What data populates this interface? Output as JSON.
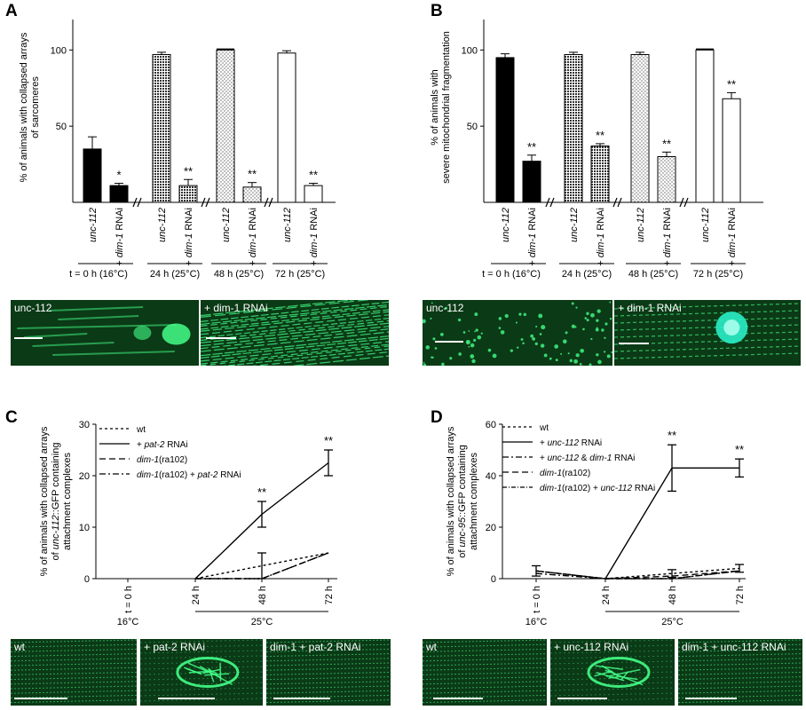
{
  "panels": {
    "A": {
      "label": "A"
    },
    "B": {
      "label": "B"
    },
    "C": {
      "label": "C"
    },
    "D": {
      "label": "D"
    }
  },
  "colors": {
    "micro_bg": "#0b3a16",
    "micro_fg": "#44ff88"
  },
  "chart_data": [
    {
      "panel": "A",
      "type": "bar",
      "ylabel": "% of animals with collapsed arrays of sarcomeres",
      "ylim": [
        0,
        120
      ],
      "yticks": [
        50,
        100
      ],
      "categories": [
        "unc-112",
        "+ dim-1 RNAi",
        "unc-112",
        "+ dim-1 RNAi",
        "unc-112",
        "+ dim-1 RNAi",
        "unc-112",
        "+ dim-1 RNAi"
      ],
      "values": [
        35,
        11,
        97,
        11,
        100,
        10,
        98,
        11
      ],
      "errors": [
        8,
        1.5,
        1.5,
        4,
        0,
        3,
        1.5,
        1.5
      ],
      "patterns": [
        "solid",
        "solid",
        "crosshatch",
        "crosshatch",
        "dots",
        "dots",
        "open",
        "open"
      ],
      "significance": [
        "",
        "*",
        "",
        "**",
        "",
        "**",
        "",
        "**"
      ],
      "groups": [
        "t = 0 h (16°C)",
        "24 h (25°C)",
        "48 h (25°C)",
        "72 h (25°C)"
      ]
    },
    {
      "panel": "B",
      "type": "bar",
      "ylabel": "% of animals with severe mitochondrial fragmentation",
      "ylim": [
        0,
        120
      ],
      "yticks": [
        50,
        100
      ],
      "categories": [
        "unc-112",
        "+ dim-1 RNAi",
        "unc-112",
        "+ dim-1 RNAi",
        "unc-112",
        "+ dim-1 RNAi",
        "unc-112",
        "+ dim-1 RNAi"
      ],
      "values": [
        95,
        27,
        97,
        37,
        97,
        30,
        100,
        68
      ],
      "errors": [
        2.5,
        4,
        1.5,
        1.5,
        1.5,
        3,
        0,
        4
      ],
      "patterns": [
        "solid",
        "solid",
        "crosshatch",
        "crosshatch",
        "dots",
        "dots",
        "open",
        "open"
      ],
      "significance": [
        "",
        "**",
        "",
        "**",
        "",
        "**",
        "",
        "**"
      ],
      "groups": [
        "t = 0 h (16°C)",
        "24 h (25°C)",
        "48 h (25°C)",
        "72 h (25°C)"
      ]
    },
    {
      "panel": "C",
      "type": "line",
      "ylabel": "% of animals with collapsed arrays of unc-112::GFP containing attachment complexes",
      "ylim": [
        0,
        30
      ],
      "yticks": [
        0,
        10,
        20,
        30
      ],
      "x": [
        "t = 0 h",
        "24 h",
        "48 h",
        "72 h"
      ],
      "temperatures": [
        "16°C",
        "25°C"
      ],
      "series": [
        {
          "name": "wt",
          "dash": "3,3",
          "values": [
            null,
            0,
            2.5,
            5
          ],
          "errors": [
            null,
            null,
            null,
            null
          ]
        },
        {
          "name": "+ pat-2 RNAi",
          "dash": "",
          "values": [
            null,
            0,
            12.5,
            22.5
          ],
          "errors": [
            null,
            null,
            2.5,
            2.5
          ]
        },
        {
          "name": "dim-1(ra102)",
          "dash": "7,4",
          "values": [
            null,
            0,
            0,
            5
          ],
          "errors": [
            null,
            null,
            5,
            null
          ]
        },
        {
          "name": "dim-1(ra102) + pat-2 RNAi",
          "dash": "7,3,2,3",
          "values": [
            null,
            0,
            0,
            5
          ],
          "errors": [
            null,
            null,
            null,
            null
          ]
        }
      ],
      "significance": [
        "",
        "",
        "**",
        "**"
      ]
    },
    {
      "panel": "D",
      "type": "line",
      "ylabel": "% of animals with collapsed arrays of unc-95::GFP containing attachment complexes",
      "ylim": [
        0,
        60
      ],
      "yticks": [
        0,
        20,
        40,
        60
      ],
      "x": [
        "t = 0 h",
        "24 h",
        "48 h",
        "72 h"
      ],
      "temperatures": [
        "16°C",
        "25°C"
      ],
      "series": [
        {
          "name": "wt",
          "dash": "3,3",
          "values": [
            3,
            0,
            2,
            4
          ],
          "errors": [
            2,
            null,
            1.5,
            1.5
          ]
        },
        {
          "name": "+ unc-112 RNAi",
          "dash": "",
          "values": [
            null,
            0,
            43,
            43
          ],
          "errors": [
            null,
            null,
            9,
            3.5
          ]
        },
        {
          "name": "+ unc-112 & dim-1 RNAi",
          "dash": "7,3,2,3",
          "values": [
            2,
            0,
            0,
            3
          ],
          "errors": [
            null,
            null,
            null,
            null
          ]
        },
        {
          "name": "dim-1(ra102)",
          "dash": "7,4",
          "values": [
            3,
            0,
            1,
            3
          ],
          "errors": [
            null,
            null,
            null,
            null
          ]
        },
        {
          "name": "dim-1(ra102) + unc-112 RNAi",
          "dash": "5,2,1,2",
          "values": [
            3,
            0,
            0,
            3
          ],
          "errors": [
            null,
            null,
            null,
            null
          ]
        }
      ],
      "significance": [
        "",
        "",
        "**",
        "**"
      ]
    }
  ],
  "micrographs": [
    {
      "name": "micrograph-a-unc-112",
      "label": "unc-112",
      "kind": "collapsed"
    },
    {
      "name": "micrograph-a-dim-1-rnai",
      "label": "+ dim-1 RNAi",
      "kind": "striated"
    },
    {
      "name": "micrograph-b-unc-112",
      "label": "unc-112",
      "kind": "dots"
    },
    {
      "name": "micrograph-b-dim-1-rnai",
      "label": "+ dim-1 RNAi",
      "kind": "mito"
    },
    {
      "name": "micrograph-c-wt",
      "label": "wt",
      "kind": "rows"
    },
    {
      "name": "micrograph-c-pat-2",
      "label": "+ pat-2 RNAi",
      "kind": "blob"
    },
    {
      "name": "micrograph-c-dim-1-pat-2",
      "label": "dim-1 + pat-2 RNAi",
      "kind": "rows"
    },
    {
      "name": "micrograph-d-wt",
      "label": "wt",
      "kind": "rows"
    },
    {
      "name": "micrograph-d-unc-112",
      "label": "+ unc-112 RNAi",
      "kind": "blob"
    },
    {
      "name": "micrograph-d-dim-1-unc-112",
      "label": "dim-1 + unc-112 RNAi",
      "kind": "rows"
    }
  ]
}
